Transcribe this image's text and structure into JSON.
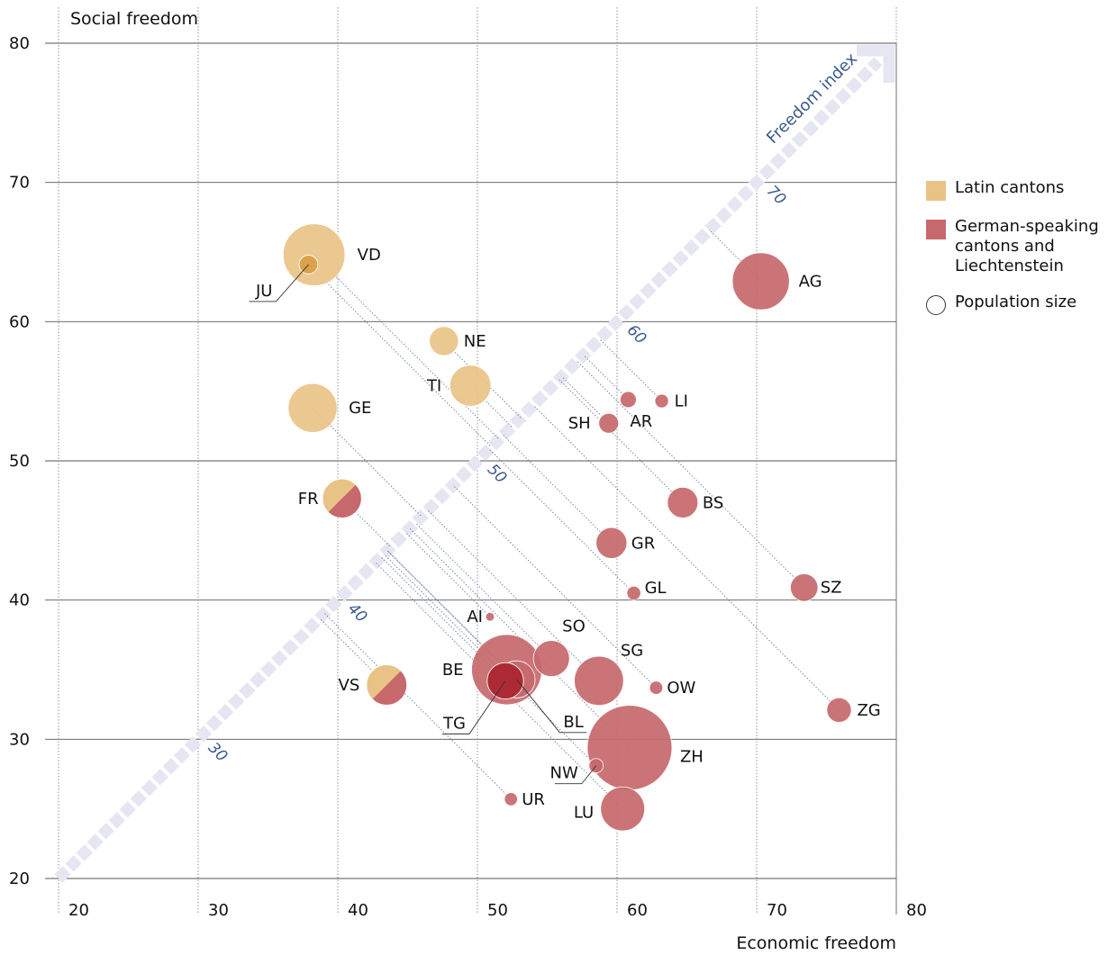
{
  "chart_data": {
    "type": "scatter",
    "xlabel": "Economic freedom",
    "ylabel": "Social freedom",
    "xlim": [
      20,
      80
    ],
    "ylim": [
      20,
      80
    ],
    "x_ticks": [
      "20",
      "30",
      "40",
      "50",
      "60",
      "70",
      "80"
    ],
    "y_ticks": [
      "20",
      "30",
      "40",
      "50",
      "60",
      "70",
      "80"
    ],
    "diagonal": {
      "label": "Freedom index",
      "ticks": [
        {
          "value": 30,
          "label": "30"
        },
        {
          "value": 40,
          "label": "40"
        },
        {
          "value": 50,
          "label": "50"
        },
        {
          "value": 60,
          "label": "60"
        },
        {
          "value": 70,
          "label": "70"
        }
      ]
    },
    "grid": true,
    "legend_position": "right",
    "legend": [
      {
        "name": "Latin cantons",
        "color": "#e9c385",
        "shape": "square"
      },
      {
        "name": "German-speaking\ncantons and\nLiechtenstein",
        "color": "#c7686c",
        "shape": "square"
      },
      {
        "name": "Population size",
        "color": "#ffffff",
        "shape": "circle"
      }
    ],
    "colors": {
      "latin": "#e9c385",
      "german": "#c7686c",
      "mixed_latin": "#e9c385",
      "mixed_german": "#c7686c"
    },
    "points": [
      {
        "label": "VD",
        "x": 38.3,
        "y": 64.8,
        "population": 800,
        "group": "latin"
      },
      {
        "label": "JU",
        "x": 37.9,
        "y": 64.1,
        "population": 73,
        "group": "latin"
      },
      {
        "label": "AG",
        "x": 70.3,
        "y": 62.9,
        "population": 680,
        "group": "german"
      },
      {
        "label": "NE",
        "x": 47.6,
        "y": 58.6,
        "population": 176,
        "group": "latin"
      },
      {
        "label": "TI",
        "x": 49.5,
        "y": 55.4,
        "population": 353,
        "group": "latin"
      },
      {
        "label": "GE",
        "x": 38.2,
        "y": 53.8,
        "population": 500,
        "group": "latin"
      },
      {
        "label": "AR",
        "x": 60.8,
        "y": 54.4,
        "population": 55,
        "group": "german"
      },
      {
        "label": "LI",
        "x": 63.2,
        "y": 54.3,
        "population": 39,
        "group": "german"
      },
      {
        "label": "SH",
        "x": 59.4,
        "y": 52.7,
        "population": 82,
        "group": "german"
      },
      {
        "label": "FR",
        "x": 40.3,
        "y": 47.3,
        "population": 318,
        "group": "mixed"
      },
      {
        "label": "BS",
        "x": 64.7,
        "y": 47.0,
        "population": 196,
        "group": "german"
      },
      {
        "label": "GR",
        "x": 59.6,
        "y": 44.1,
        "population": 199,
        "group": "german"
      },
      {
        "label": "GL",
        "x": 61.2,
        "y": 40.5,
        "population": 40,
        "group": "german"
      },
      {
        "label": "SZ",
        "x": 73.4,
        "y": 40.9,
        "population": 159,
        "group": "german"
      },
      {
        "label": "AI",
        "x": 50.9,
        "y": 38.8,
        "population": 16,
        "group": "german"
      },
      {
        "label": "SO",
        "x": 55.3,
        "y": 35.8,
        "population": 273,
        "group": "german"
      },
      {
        "label": "BE",
        "x": 52.1,
        "y": 35.0,
        "population": 1035,
        "group": "german"
      },
      {
        "label": "SG",
        "x": 58.7,
        "y": 34.2,
        "population": 507,
        "group": "german"
      },
      {
        "label": "BL",
        "x": 52.8,
        "y": 34.3,
        "population": 289,
        "group": "german"
      },
      {
        "label": "TG",
        "x": 52.0,
        "y": 34.2,
        "population": 276,
        "group": "german"
      },
      {
        "label": "VS",
        "x": 43.5,
        "y": 33.9,
        "population": 340,
        "group": "mixed"
      },
      {
        "label": "OW",
        "x": 62.8,
        "y": 33.7,
        "population": 37,
        "group": "german"
      },
      {
        "label": "ZG",
        "x": 75.9,
        "y": 32.1,
        "population": 126,
        "group": "german"
      },
      {
        "label": "ZH",
        "x": 60.9,
        "y": 29.4,
        "population": 1500,
        "group": "german"
      },
      {
        "label": "NW",
        "x": 58.5,
        "y": 28.1,
        "population": 43,
        "group": "german"
      },
      {
        "label": "UR",
        "x": 52.4,
        "y": 25.7,
        "population": 36,
        "group": "german"
      },
      {
        "label": "LU",
        "x": 60.4,
        "y": 25.0,
        "population": 406,
        "group": "german"
      }
    ]
  }
}
